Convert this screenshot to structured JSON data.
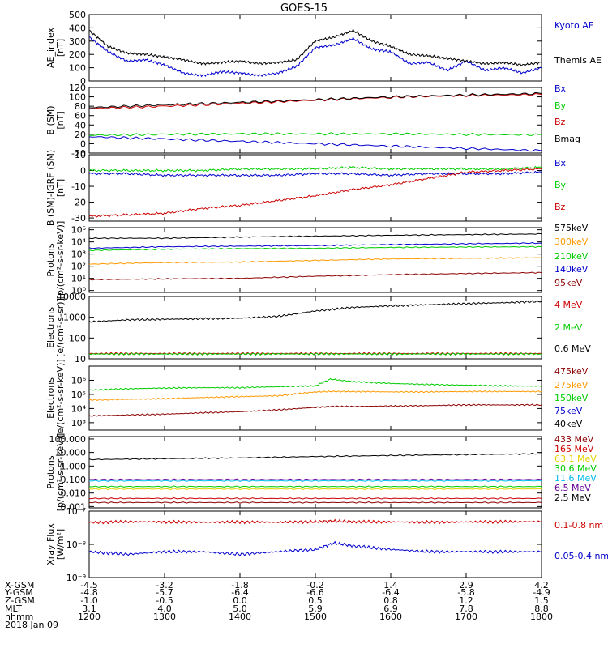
{
  "title": "GOES-15",
  "colors": {
    "black": "#000000",
    "blue": "#0000cc",
    "green": "#00cc00",
    "red": "#cc0000",
    "darkred": "#8b0000",
    "orange": "#ff9900",
    "yellow": "#e6d200",
    "cyan": "#00bbee",
    "purple": "#660099"
  },
  "chart_data": [
    {
      "type": "line",
      "id": "ae",
      "ylabel": [
        "AE_index",
        "[nT]"
      ],
      "ylim": [
        0,
        500
      ],
      "log": false,
      "ticks": [
        0,
        100,
        200,
        300,
        400,
        500
      ],
      "tick_labels": [
        "0",
        "100",
        "200",
        "300",
        "400",
        "500"
      ],
      "x": [
        12.0,
        12.25,
        12.5,
        12.75,
        13.0,
        13.25,
        13.5,
        13.75,
        14.0,
        14.25,
        14.5,
        14.75,
        15.0,
        15.25,
        15.5,
        15.75,
        16.0,
        16.25,
        16.5,
        16.75,
        17.0,
        17.25,
        17.5,
        17.75,
        18.0
      ],
      "series": [
        {
          "name": "Kyoto AE",
          "color": "#0000cc",
          "values": [
            330,
            220,
            150,
            160,
            120,
            60,
            40,
            70,
            60,
            40,
            60,
            110,
            250,
            270,
            320,
            240,
            220,
            130,
            140,
            80,
            150,
            80,
            100,
            60,
            100
          ]
        },
        {
          "name": "Themis AE",
          "color": "#000000",
          "values": [
            380,
            260,
            210,
            200,
            180,
            160,
            130,
            140,
            150,
            130,
            140,
            160,
            300,
            330,
            380,
            300,
            260,
            200,
            190,
            170,
            150,
            130,
            140,
            120,
            140
          ]
        }
      ]
    },
    {
      "type": "line",
      "id": "bsm",
      "ylabel": [
        "B (SM)",
        "[nT]"
      ],
      "ylim": [
        -20,
        120
      ],
      "log": false,
      "ticks": [
        -20,
        0,
        20,
        40,
        60,
        80,
        100,
        120
      ],
      "tick_labels": [
        "-20",
        "0",
        "20",
        "40",
        "60",
        "80",
        "100",
        "120"
      ],
      "x": [
        12.0,
        13.0,
        14.0,
        15.0,
        16.0,
        17.0,
        18.0
      ],
      "series": [
        {
          "name": "Bx",
          "color": "#0000cc",
          "values": [
            15,
            10,
            5,
            0,
            -5,
            -10,
            -15
          ]
        },
        {
          "name": "By",
          "color": "#00cc00",
          "values": [
            18,
            20,
            21,
            21,
            21,
            20,
            19
          ]
        },
        {
          "name": "Bz",
          "color": "#cc0000",
          "values": [
            75,
            80,
            86,
            93,
            99,
            103,
            105
          ]
        },
        {
          "name": "Bmag",
          "color": "#000000",
          "values": [
            77,
            83,
            88,
            94,
            100,
            104,
            107
          ]
        }
      ]
    },
    {
      "type": "line",
      "id": "digrf",
      "ylabel": [
        "B (SM)-IGRF (SM)",
        "[nT]"
      ],
      "ylim": [
        -32,
        10
      ],
      "log": false,
      "ticks": [
        -30,
        -20,
        -10,
        0,
        10
      ],
      "tick_labels": [
        "-30",
        "-20",
        "-10",
        "0",
        "10"
      ],
      "x": [
        12.0,
        12.5,
        13.0,
        13.5,
        14.0,
        14.5,
        15.0,
        15.5,
        16.0,
        16.5,
        17.0,
        17.5,
        18.0
      ],
      "series": [
        {
          "name": "Bx",
          "color": "#0000cc",
          "values": [
            -2,
            -2,
            -3,
            -3,
            -3,
            -3,
            -2,
            -2,
            -3,
            -2,
            -2,
            -2,
            -1
          ]
        },
        {
          "name": "By",
          "color": "#00cc00",
          "values": [
            0,
            0,
            0,
            0,
            1,
            1,
            1,
            2,
            1,
            1,
            1,
            1,
            2
          ]
        },
        {
          "name": "Bz",
          "color": "#cc0000",
          "values": [
            -29,
            -28,
            -27,
            -24,
            -22,
            -19,
            -16,
            -12,
            -9,
            -5,
            -1,
            0,
            1
          ]
        }
      ]
    },
    {
      "type": "line",
      "id": "protons",
      "ylabel": [
        "Protons",
        "[p/(cm²-s-sr-keV)]"
      ],
      "ylim": [
        0.7,
        150000
      ],
      "log": true,
      "ticks": [
        1,
        10,
        100,
        1000,
        10000,
        100000
      ],
      "tick_labels": [
        "10⁰",
        "10¹",
        "10²",
        "10³",
        "10⁴",
        "10⁵"
      ],
      "x": [
        12.0,
        13.0,
        14.0,
        15.0,
        16.0,
        17.0,
        18.0
      ],
      "series": [
        {
          "name": "575keV",
          "color": "#000000",
          "values": [
            20000,
            20000,
            25000,
            30000,
            35000,
            40000,
            45000
          ]
        },
        {
          "name": "300keV",
          "color": "#ff9900",
          "values": [
            150,
            200,
            220,
            300,
            400,
            450,
            500
          ]
        },
        {
          "name": "210keV",
          "color": "#00cc00",
          "values": [
            2000,
            2500,
            2800,
            3000,
            3500,
            3800,
            4000
          ]
        },
        {
          "name": "140keV",
          "color": "#0000cc",
          "values": [
            3000,
            4000,
            4500,
            5000,
            6000,
            7000,
            8000
          ]
        },
        {
          "name": "95keV",
          "color": "#8b0000",
          "values": [
            8,
            9,
            10,
            15,
            20,
            25,
            30
          ]
        }
      ]
    },
    {
      "type": "line",
      "id": "electrons_mev",
      "ylabel": [
        "Electrons",
        "[e/(cm²-s-sr)]"
      ],
      "ylim": [
        10,
        10000
      ],
      "log": true,
      "ticks": [
        10,
        100,
        1000,
        10000
      ],
      "tick_labels": [
        "10",
        "100",
        "1000",
        "10000"
      ],
      "x": [
        12.0,
        12.5,
        13.0,
        13.5,
        14.0,
        14.5,
        15.0,
        15.5,
        16.0,
        16.5,
        17.0,
        17.5,
        18.0
      ],
      "series": [
        {
          "name": "4 MeV",
          "color": "#cc0000",
          "values": [
            18,
            18,
            18,
            18,
            18,
            18,
            18,
            18,
            18,
            18,
            18,
            18,
            18
          ]
        },
        {
          "name": "2 MeV",
          "color": "#00cc00",
          "values": [
            17,
            17,
            17,
            17,
            17,
            17,
            17,
            17,
            17,
            17,
            17,
            17,
            17
          ]
        },
        {
          "name": "0.6 MeV",
          "color": "#000000",
          "values": [
            600,
            750,
            800,
            850,
            900,
            1100,
            2000,
            3000,
            3500,
            4000,
            4500,
            5000,
            5800
          ]
        }
      ]
    },
    {
      "type": "line",
      "id": "electrons_kev",
      "ylabel": [
        "Electrons",
        "[e/(cm²-s-sr-keV)]"
      ],
      "ylim": [
        300,
        10000000
      ],
      "log": true,
      "ticks": [
        1000,
        10000,
        100000,
        1000000
      ],
      "tick_labels": [
        "10³",
        "10⁴",
        "10⁵",
        "10⁶"
      ],
      "x": [
        12.0,
        12.5,
        13.0,
        13.5,
        14.0,
        14.5,
        15.0,
        15.2,
        15.5,
        16.0,
        16.5,
        17.0,
        17.5,
        18.0
      ],
      "series": [
        {
          "name": "475keV",
          "color": "#8b0000",
          "values": [
            3000,
            3500,
            4000,
            5000,
            6000,
            8000,
            12000,
            14000,
            14000,
            15000,
            16000,
            18000,
            18000,
            18000
          ]
        },
        {
          "name": "275keV",
          "color": "#ff9900",
          "values": [
            40000,
            45000,
            50000,
            60000,
            70000,
            80000,
            150000,
            160000,
            160000,
            150000,
            150000,
            160000,
            160000,
            160000
          ]
        },
        {
          "name": "150keV",
          "color": "#00cc00",
          "values": [
            200000,
            250000,
            280000,
            300000,
            300000,
            350000,
            400000,
            1200000,
            800000,
            600000,
            500000,
            450000,
            400000,
            380000
          ]
        }
      ]
    },
    {
      "type": "line",
      "id": "protons_mev",
      "ylabel": [
        "Protons",
        "[p/(cm²-s-sr-keV)]"
      ],
      "ylim": [
        0.0008,
        150
      ],
      "log": true,
      "ticks": [
        0.001,
        0.01,
        0.1,
        1,
        10,
        100
      ],
      "tick_labels": [
        "0.001",
        "0.010",
        "0.100",
        "1.000",
        "10.000",
        "100.000"
      ],
      "x": [
        12.0,
        13.0,
        14.0,
        15.0,
        16.0,
        17.0,
        18.0
      ],
      "series": [
        {
          "name": "433 MeV",
          "color": "#8b0000",
          "values": [
            0.002,
            0.002,
            0.002,
            0.002,
            0.002,
            0.002,
            0.002
          ]
        },
        {
          "name": "165 MeV",
          "color": "#cc0000",
          "values": [
            0.004,
            0.004,
            0.004,
            0.004,
            0.004,
            0.004,
            0.004
          ]
        },
        {
          "name": "63.1 MeV",
          "color": "#e6d200",
          "values": [
            0.02,
            0.02,
            0.02,
            0.02,
            0.02,
            0.02,
            0.02
          ]
        },
        {
          "name": "30.6 MeV",
          "color": "#00cc00",
          "values": [
            0.03,
            0.03,
            0.03,
            0.03,
            0.03,
            0.03,
            0.03
          ]
        },
        {
          "name": "11.6 MeV",
          "color": "#00bbee",
          "values": [
            0.08,
            0.08,
            0.08,
            0.08,
            0.08,
            0.08,
            0.08
          ]
        },
        {
          "name": "6.5 MeV",
          "color": "#660099",
          "values": [
            0.1,
            0.1,
            0.1,
            0.1,
            0.1,
            0.1,
            0.1
          ]
        },
        {
          "name": "2.5 MeV",
          "color": "#000000",
          "values": [
            3,
            3.5,
            4,
            5,
            6,
            7,
            8
          ]
        }
      ]
    },
    {
      "type": "line",
      "id": "xray",
      "ylabel": [
        "Xray Flux",
        "[W/m²]"
      ],
      "ylim": [
        1e-09,
        1e-07
      ],
      "log": true,
      "ticks": [
        1e-09,
        1e-08,
        1e-07
      ],
      "tick_labels": [
        "10⁻⁹",
        "10⁻⁸",
        "10⁻⁷"
      ],
      "x": [
        12.0,
        12.5,
        13.0,
        13.5,
        14.0,
        14.5,
        15.0,
        15.25,
        15.5,
        16.0,
        16.5,
        17.0,
        17.5,
        18.0
      ],
      "series": [
        {
          "name": "0.1-0.8 nm",
          "color": "#cc0000",
          "values": [
            4.5e-08,
            4.8e-08,
            4.7e-08,
            4.6e-08,
            4.7e-08,
            4.6e-08,
            4.8e-08,
            5e-08,
            4.8e-08,
            4.7e-08,
            4.6e-08,
            4.7e-08,
            4.8e-08,
            4.8e-08
          ]
        },
        {
          "name": "0.05-0.4 nm",
          "color": "#0000cc",
          "values": [
            6e-09,
            5e-09,
            6e-09,
            6e-09,
            5e-09,
            6e-09,
            7e-09,
            1.1e-08,
            9e-09,
            7e-09,
            6e-09,
            6e-09,
            6e-09,
            6e-09
          ]
        }
      ]
    }
  ],
  "x_axis": {
    "ticks": [
      12.0,
      13.0,
      14.0,
      15.0,
      16.0,
      17.0,
      18.0
    ],
    "rows": [
      {
        "label": "X-GSM",
        "values": [
          "-4.5",
          "-3.2",
          "-1.8",
          "-0.2",
          "1.4",
          "2.9",
          "4.2"
        ]
      },
      {
        "label": "Y-GSM",
        "values": [
          "-4.8",
          "-5.7",
          "-6.4",
          "-6.6",
          "-6.4",
          "-5.8",
          "-4.9"
        ]
      },
      {
        "label": "Z-GSM",
        "values": [
          "-1.0",
          "-0.5",
          "0.0",
          "0.5",
          "0.8",
          "1.2",
          "1.5"
        ]
      },
      {
        "label": "MLT",
        "values": [
          "3.1",
          "4.0",
          "5.0",
          "5.9",
          "6.9",
          "7.8",
          "8.8"
        ]
      },
      {
        "label": "hhmm",
        "values": [
          "1200",
          "1300",
          "1400",
          "1500",
          "1600",
          "1700",
          "1800"
        ]
      }
    ],
    "date": "2018 Jan 09"
  }
}
